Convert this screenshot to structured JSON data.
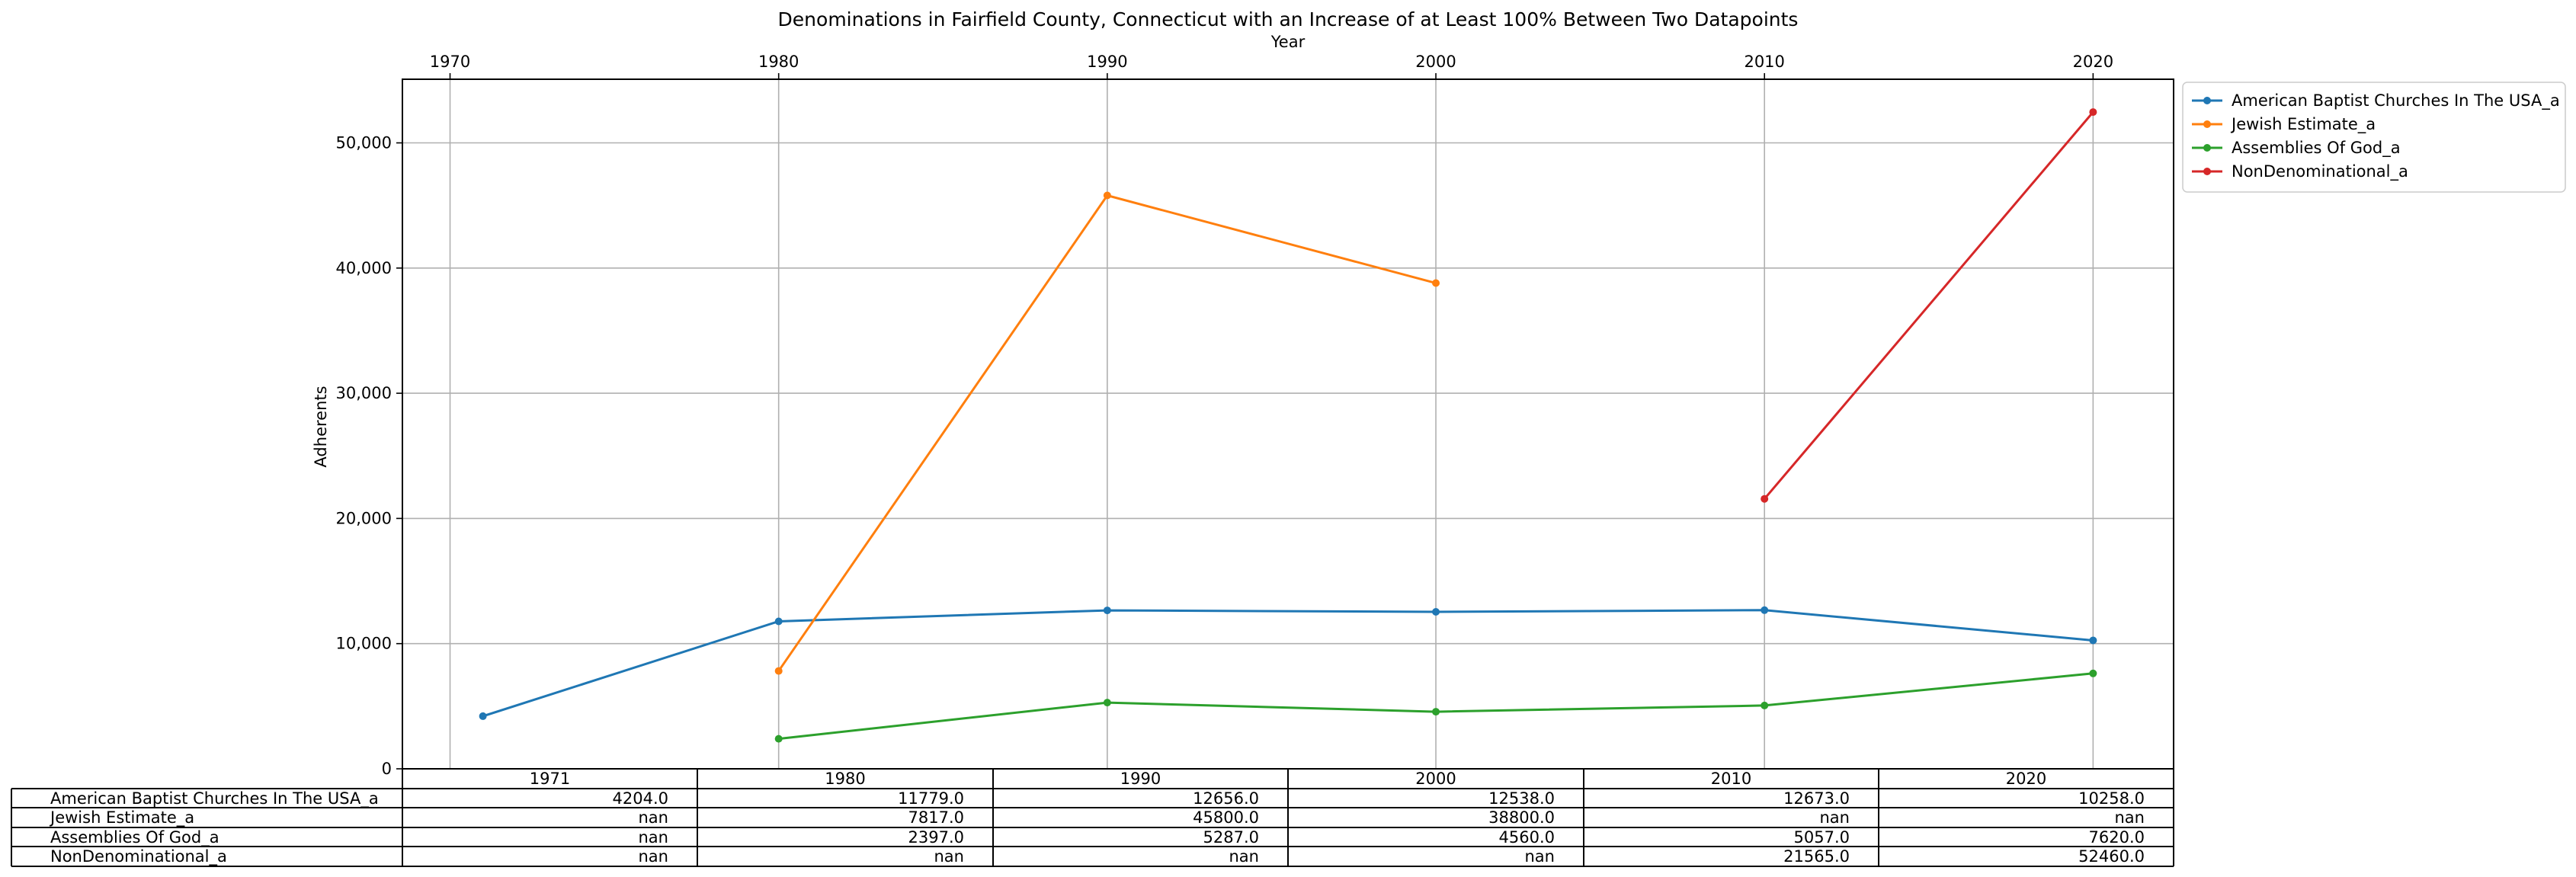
{
  "chart_data": {
    "type": "line",
    "title": "Denominations in Fairfield County, Connecticut with an Increase of at Least 100% Between Two Datapoints",
    "xlabel": "Year",
    "ylabel": "Adherents",
    "x": [
      1971,
      1980,
      1990,
      2000,
      2010,
      2020
    ],
    "x_ticks": [
      1970,
      1980,
      1990,
      2000,
      2010,
      2020
    ],
    "y_ticks": [
      0,
      10000,
      20000,
      30000,
      40000,
      50000
    ],
    "y_tick_labels": [
      "0",
      "10,000",
      "20,000",
      "30,000",
      "40,000",
      "50,000"
    ],
    "xlim": [
      1968.55,
      2022.45
    ],
    "ylim": [
      0,
      55083
    ],
    "grid": true,
    "legend_position": "outside upper right",
    "series": [
      {
        "name": "American Baptist Churches In The USA_a",
        "color": "#1f77b4",
        "values": [
          4204,
          11779,
          12656,
          12538,
          12673,
          10258
        ]
      },
      {
        "name": "Jewish Estimate_a",
        "color": "#ff7f0e",
        "values": [
          null,
          7817,
          45800,
          38800,
          null,
          null
        ]
      },
      {
        "name": "Assemblies Of God_a",
        "color": "#2ca02c",
        "values": [
          null,
          2397,
          5287,
          4560,
          5057,
          7620
        ]
      },
      {
        "name": "NonDenominational_a",
        "color": "#d62728",
        "values": [
          null,
          null,
          null,
          null,
          21565,
          52460
        ]
      }
    ],
    "table": {
      "col_labels": [
        "1971",
        "1980",
        "1990",
        "2000",
        "2010",
        "2020"
      ],
      "rows": [
        {
          "label": "American Baptist Churches In The USA_a",
          "cells": [
            "4204.0",
            "11779.0",
            "12656.0",
            "12538.0",
            "12673.0",
            "10258.0"
          ]
        },
        {
          "label": "Jewish Estimate_a",
          "cells": [
            "nan",
            "7817.0",
            "45800.0",
            "38800.0",
            "nan",
            "nan"
          ]
        },
        {
          "label": "Assemblies Of God_a",
          "cells": [
            "nan",
            "2397.0",
            "5287.0",
            "4560.0",
            "5057.0",
            "7620.0"
          ]
        },
        {
          "label": "NonDenominational_a",
          "cells": [
            "nan",
            "nan",
            "nan",
            "nan",
            "21565.0",
            "52460.0"
          ]
        }
      ]
    }
  }
}
